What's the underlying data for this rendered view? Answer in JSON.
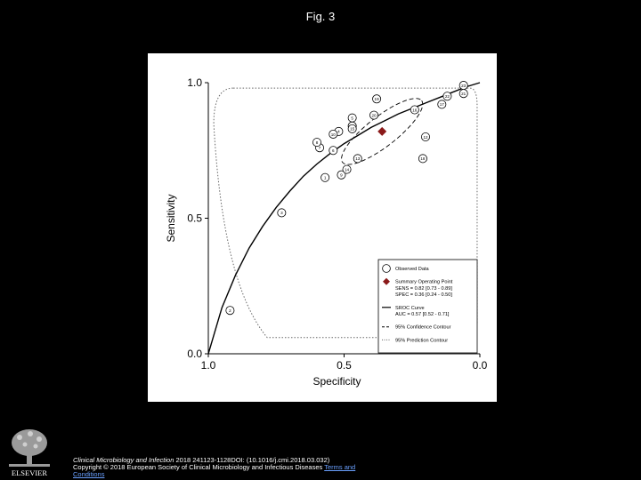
{
  "figure_title": "Fig. 3",
  "caption": {
    "journal": "Clinical Microbiology and Infection",
    "citation": " 2018 241123-1128DOI: (10.1016/j.cmi.2018.03.032)",
    "copyright": "Copyright © 2018 European Society of Clinical Microbiology and Infectious Diseases",
    "terms_link": "Terms and",
    "terms_link_2": "Conditions"
  },
  "logo": {
    "text": "ELSEVIER"
  },
  "chart_data": {
    "type": "scatter",
    "xlabel": "Specificity",
    "ylabel": "Sensitivity",
    "xlim": [
      1.0,
      0.0
    ],
    "ylim": [
      0.0,
      1.0
    ],
    "x_ticks": [
      "1.0",
      "0.5",
      "0.0"
    ],
    "y_ticks": [
      "0.0",
      "0.5",
      "1.0"
    ],
    "grid": false,
    "legend_position": "bottom-right",
    "points": [
      {
        "label": "1",
        "x": 0.57,
        "y": 0.65
      },
      {
        "label": "2",
        "x": 0.92,
        "y": 0.16
      },
      {
        "label": "3",
        "x": 0.73,
        "y": 0.52
      },
      {
        "label": "4",
        "x": 0.52,
        "y": 0.82
      },
      {
        "label": "5",
        "x": 0.47,
        "y": 0.87
      },
      {
        "label": "6",
        "x": 0.54,
        "y": 0.75
      },
      {
        "label": "7",
        "x": 0.59,
        "y": 0.76
      },
      {
        "label": "8",
        "x": 0.6,
        "y": 0.78
      },
      {
        "label": "9",
        "x": 0.51,
        "y": 0.66
      },
      {
        "label": "10",
        "x": 0.54,
        "y": 0.81
      },
      {
        "label": "11",
        "x": 0.47,
        "y": 0.84
      },
      {
        "label": "12",
        "x": 0.2,
        "y": 0.8
      },
      {
        "label": "13",
        "x": 0.45,
        "y": 0.72
      },
      {
        "label": "14",
        "x": 0.49,
        "y": 0.68
      },
      {
        "label": "15",
        "x": 0.47,
        "y": 0.83
      },
      {
        "label": "16",
        "x": 0.24,
        "y": 0.9
      },
      {
        "label": "17",
        "x": 0.14,
        "y": 0.92
      },
      {
        "label": "18",
        "x": 0.21,
        "y": 0.72
      },
      {
        "label": "19",
        "x": 0.38,
        "y": 0.94
      },
      {
        "label": "20",
        "x": 0.39,
        "y": 0.88
      },
      {
        "label": "21",
        "x": 0.06,
        "y": 0.96
      },
      {
        "label": "22",
        "x": 0.12,
        "y": 0.95
      },
      {
        "label": "23",
        "x": 0.06,
        "y": 0.99
      }
    ],
    "summary_point": {
      "x": 0.36,
      "y": 0.82
    },
    "sroc_curve": {
      "x": [
        1.0,
        0.95,
        0.9,
        0.85,
        0.8,
        0.75,
        0.7,
        0.65,
        0.6,
        0.55,
        0.5,
        0.45,
        0.4,
        0.35,
        0.3,
        0.25,
        0.2,
        0.15,
        0.1,
        0.05,
        0.0
      ],
      "y": [
        0.0,
        0.17,
        0.29,
        0.39,
        0.47,
        0.54,
        0.6,
        0.655,
        0.7,
        0.74,
        0.775,
        0.805,
        0.835,
        0.86,
        0.885,
        0.905,
        0.925,
        0.945,
        0.965,
        0.985,
        1.0
      ]
    },
    "confidence_contour": {
      "cx": 0.36,
      "cy": 0.82,
      "rx": 0.185,
      "ry": 0.055,
      "rotation_deg": -38
    },
    "prediction_contour": {
      "x_min": 0.01,
      "x_max": 0.98,
      "y_min": 0.06,
      "y_max": 0.98
    },
    "legend": [
      {
        "symbol": "circle",
        "text": [
          "Observed Data"
        ]
      },
      {
        "symbol": "diamond",
        "color": "#8b1a1a",
        "text": [
          "Summary Operating Point",
          "SENS = 0.82 [0.73 - 0.89]",
          "SPEC = 0.36 [0.24 - 0.50]"
        ]
      },
      {
        "symbol": "solid-line",
        "text": [
          "SROC Curve",
          "AUC = 0.57 [0.52 - 0.71]"
        ]
      },
      {
        "symbol": "dashed-line",
        "text": [
          "95% Confidence Contour"
        ]
      },
      {
        "symbol": "dotted-line",
        "text": [
          "95% Prediction Contour"
        ]
      }
    ]
  }
}
